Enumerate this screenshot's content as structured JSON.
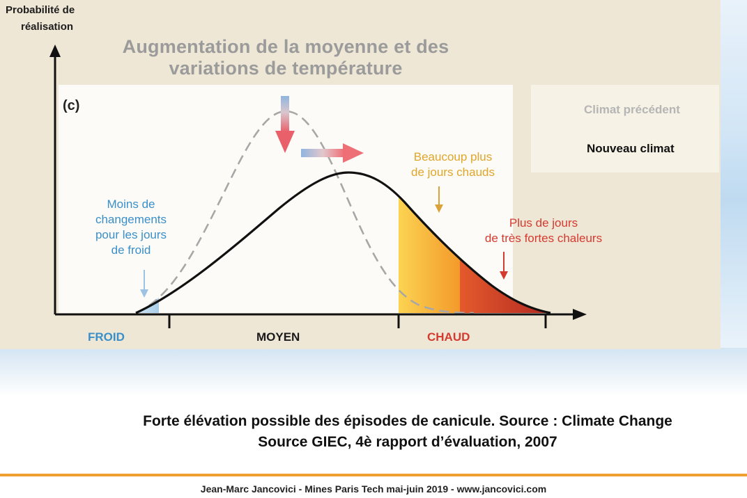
{
  "figure": {
    "y_axis_label_line1": "Probabilité de",
    "y_axis_label_line2": "réalisation",
    "title_line1": "Augmentation de la moyenne et des",
    "title_line2": "variations de température",
    "panel_label": "(c)",
    "legend": {
      "previous": "Climat précédent",
      "new": "Nouveau climat"
    },
    "annotations": {
      "cold_line1": "Moins de",
      "cold_line2": "changements",
      "cold_line3": "pour les jours",
      "cold_line4": "de froid",
      "hot_line1": "Beaucoup plus",
      "hot_line2": "de jours chauds",
      "extreme_line1": "Plus de jours",
      "extreme_line2": "de très fortes chaleurs"
    },
    "x_labels": {
      "cold": "FROID",
      "mean": "MOYEN",
      "hot": "CHAUD"
    },
    "colors": {
      "cold": "#3a8fc9",
      "hot_text": "#e0a62a",
      "extreme_text": "#d53a2f",
      "hot_fill": "#f7b733",
      "extreme_fill": "#d84528",
      "title_grey": "#9b9b9b"
    }
  },
  "caption": {
    "line1": "Forte élévation possible des épisodes de canicule. Source : Climate Change",
    "line2": "Source GIEC, 4è rapport d’évaluation, 2007"
  },
  "footer": "Jean-Marc Jancovici - Mines Paris Tech mai-juin 2019 - www.jancovici.com"
}
